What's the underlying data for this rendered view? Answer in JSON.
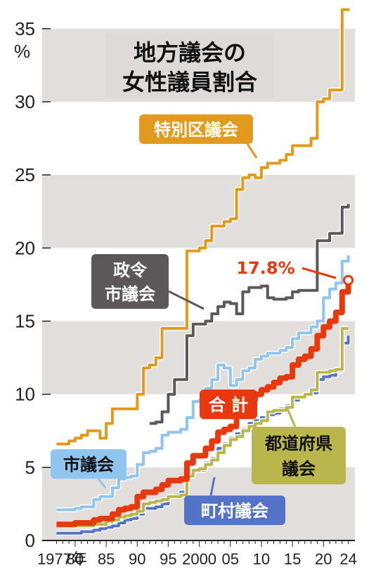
{
  "chart_data": {
    "type": "line",
    "title_lines": [
      "地方議会の",
      "女性議員割合"
    ],
    "y_unit": "%",
    "ylim": [
      0,
      36
    ],
    "y_ticks": [
      0,
      5,
      10,
      15,
      20,
      25,
      30,
      35
    ],
    "x_ticks": [
      {
        "year": 1977,
        "label": "1977年"
      },
      {
        "year": 1980,
        "label": "80"
      },
      {
        "year": 1985,
        "label": "85"
      },
      {
        "year": 1990,
        "label": "90"
      },
      {
        "year": 1995,
        "label": "95"
      },
      {
        "year": 2000,
        "label": "2000"
      },
      {
        "year": 2005,
        "label": "05"
      },
      {
        "year": 2010,
        "label": "10"
      },
      {
        "year": 2015,
        "label": "15"
      },
      {
        "year": 2020,
        "label": "20"
      },
      {
        "year": 2024,
        "label": "24"
      }
    ],
    "xlim": [
      1976.5,
      2024.5
    ],
    "series": [
      {
        "name": "特別区議会",
        "color": "#e19a1d",
        "x": [
          1977,
          1978,
          1979,
          1980,
          1981,
          1982,
          1983,
          1984,
          1985,
          1986,
          1987,
          1988,
          1989,
          1990,
          1991,
          1992,
          1993,
          1994,
          1995,
          1996,
          1997,
          1998,
          1999,
          2000,
          2001,
          2002,
          2003,
          2004,
          2005,
          2006,
          2007,
          2008,
          2009,
          2010,
          2011,
          2012,
          2013,
          2014,
          2015,
          2016,
          2017,
          2018,
          2019,
          2020,
          2021,
          2022,
          2023,
          2024
        ],
        "y": [
          6.6,
          6.6,
          6.8,
          7.0,
          7.2,
          7.5,
          7.5,
          7.0,
          8.0,
          9.0,
          9.0,
          9.0,
          9.0,
          10.0,
          11.8,
          12.0,
          12.5,
          14.5,
          14.5,
          14.5,
          14.5,
          19.8,
          19.8,
          20.0,
          20.5,
          21.5,
          21.5,
          21.8,
          22.0,
          24.0,
          24.8,
          25.0,
          24.8,
          25.5,
          25.8,
          25.8,
          26.0,
          26.4,
          27.0,
          27.0,
          27.0,
          27.5,
          30.0,
          30.2,
          30.8,
          30.8,
          36.3,
          36.2
        ]
      },
      {
        "name": "政令市議会",
        "color": "#5c5859",
        "x": [
          1992,
          1993,
          1994,
          1995,
          1996,
          1997,
          1998,
          1999,
          2000,
          2001,
          2002,
          2003,
          2004,
          2005,
          2006,
          2007,
          2008,
          2009,
          2010,
          2011,
          2012,
          2013,
          2014,
          2015,
          2016,
          2017,
          2018,
          2019,
          2020,
          2021,
          2022,
          2023,
          2024
        ],
        "y": [
          8.0,
          8.1,
          8.8,
          10.0,
          11.0,
          11.0,
          14.0,
          14.8,
          14.8,
          15.0,
          15.5,
          16.0,
          16.3,
          16.2,
          15.5,
          17.0,
          17.3,
          17.3,
          17.4,
          16.6,
          16.5,
          16.5,
          16.6,
          17.0,
          17.1,
          17.1,
          17.1,
          20.5,
          20.5,
          21.0,
          21.0,
          22.8,
          23.0
        ]
      },
      {
        "name": "市議会",
        "color": "#8fc5ee",
        "x": [
          1977,
          1978,
          1979,
          1980,
          1981,
          1982,
          1983,
          1984,
          1985,
          1986,
          1987,
          1988,
          1989,
          1990,
          1991,
          1992,
          1993,
          1994,
          1995,
          1996,
          1997,
          1998,
          1999,
          2000,
          2001,
          2002,
          2003,
          2004,
          2005,
          2006,
          2007,
          2008,
          2009,
          2010,
          2011,
          2012,
          2013,
          2014,
          2015,
          2016,
          2017,
          2018,
          2019,
          2020,
          2021,
          2022,
          2023,
          2024
        ],
        "y": [
          2.1,
          2.1,
          2.1,
          2.2,
          2.3,
          2.3,
          2.8,
          3.0,
          3.0,
          3.6,
          4.2,
          4.3,
          4.4,
          5.2,
          6.0,
          6.1,
          6.3,
          7.2,
          7.4,
          7.4,
          7.6,
          8.4,
          9.5,
          9.6,
          10.4,
          11.0,
          12.0,
          11.8,
          10.6,
          11.0,
          11.6,
          11.8,
          12.4,
          12.6,
          12.8,
          12.8,
          13.0,
          13.2,
          13.8,
          14.2,
          14.2,
          14.6,
          15.0,
          16.6,
          17.2,
          17.6,
          19.1,
          19.5
        ]
      },
      {
        "name": "合計",
        "color": "#e8390e",
        "label_value": "17.8%",
        "x": [
          1977,
          1978,
          1979,
          1980,
          1981,
          1982,
          1983,
          1984,
          1985,
          1986,
          1987,
          1988,
          1989,
          1990,
          1991,
          1992,
          1993,
          1994,
          1995,
          1996,
          1997,
          1998,
          1999,
          2000,
          2001,
          2002,
          2003,
          2004,
          2005,
          2006,
          2007,
          2008,
          2009,
          2010,
          2011,
          2012,
          2013,
          2014,
          2015,
          2016,
          2017,
          2018,
          2019,
          2020,
          2021,
          2022,
          2023,
          2024
        ],
        "y": [
          1.1,
          1.1,
          1.1,
          1.2,
          1.2,
          1.2,
          1.4,
          1.5,
          1.5,
          1.8,
          2.1,
          2.2,
          2.3,
          3.0,
          3.3,
          3.3,
          3.5,
          3.8,
          4.1,
          4.1,
          4.2,
          5.3,
          5.8,
          5.8,
          6.3,
          6.8,
          7.4,
          7.6,
          7.8,
          8.6,
          9.2,
          9.6,
          10.0,
          10.3,
          10.5,
          10.8,
          11.1,
          11.2,
          12.0,
          12.4,
          12.6,
          13.1,
          14.0,
          14.6,
          15.0,
          15.6,
          17.0,
          17.8
        ]
      },
      {
        "name": "都道府県議会",
        "color": "#bab64e",
        "x": [
          1977,
          1978,
          1979,
          1980,
          1981,
          1982,
          1983,
          1984,
          1985,
          1986,
          1987,
          1988,
          1989,
          1990,
          1991,
          1992,
          1993,
          1994,
          1995,
          1996,
          1997,
          1998,
          1999,
          2000,
          2001,
          2002,
          2003,
          2004,
          2005,
          2006,
          2007,
          2008,
          2009,
          2010,
          2011,
          2012,
          2013,
          2014,
          2015,
          2016,
          2017,
          2018,
          2019,
          2020,
          2021,
          2022,
          2023,
          2024
        ],
        "y": [
          1.1,
          1.0,
          1.0,
          1.0,
          1.0,
          1.0,
          1.1,
          1.1,
          1.3,
          1.4,
          1.6,
          1.7,
          1.8,
          2.0,
          2.5,
          2.6,
          2.7,
          2.8,
          3.0,
          3.0,
          3.1,
          4.4,
          4.8,
          4.9,
          5.2,
          5.5,
          6.0,
          6.5,
          6.9,
          7.1,
          7.5,
          7.8,
          8.0,
          8.2,
          8.8,
          8.9,
          8.9,
          9.1,
          9.8,
          9.8,
          10.0,
          10.3,
          11.5,
          11.5,
          11.6,
          11.7,
          14.5,
          14.5
        ]
      },
      {
        "name": "町村議会",
        "color": "#5372c8",
        "x": [
          1977,
          1978,
          1979,
          1980,
          1981,
          1982,
          1983,
          1984,
          1985,
          1986,
          1987,
          1988,
          1989,
          1990,
          1991,
          1992,
          1993,
          1994,
          1995,
          1996,
          1997,
          1998,
          1999,
          2000,
          2001,
          2002,
          2003,
          2004,
          2005,
          2006,
          2007,
          2008,
          2009,
          2010,
          2011,
          2012,
          2013,
          2014,
          2015,
          2016,
          2017,
          2018,
          2019,
          2020,
          2021,
          2022,
          2023,
          2024
        ],
        "y": [
          0.5,
          0.5,
          0.5,
          0.5,
          0.6,
          0.6,
          0.7,
          0.8,
          0.9,
          1.0,
          1.2,
          1.4,
          1.5,
          1.8,
          2.2,
          2.2,
          2.3,
          2.5,
          3.0,
          3.1,
          3.3,
          4.4,
          4.8,
          4.8,
          5.3,
          5.6,
          6.3,
          6.6,
          7.0,
          7.3,
          7.6,
          8.0,
          8.2,
          8.4,
          8.6,
          8.7,
          9.0,
          9.2,
          9.6,
          9.8,
          10.0,
          10.1,
          11.0,
          11.2,
          11.3,
          11.6,
          13.5,
          14.0
        ]
      }
    ]
  }
}
